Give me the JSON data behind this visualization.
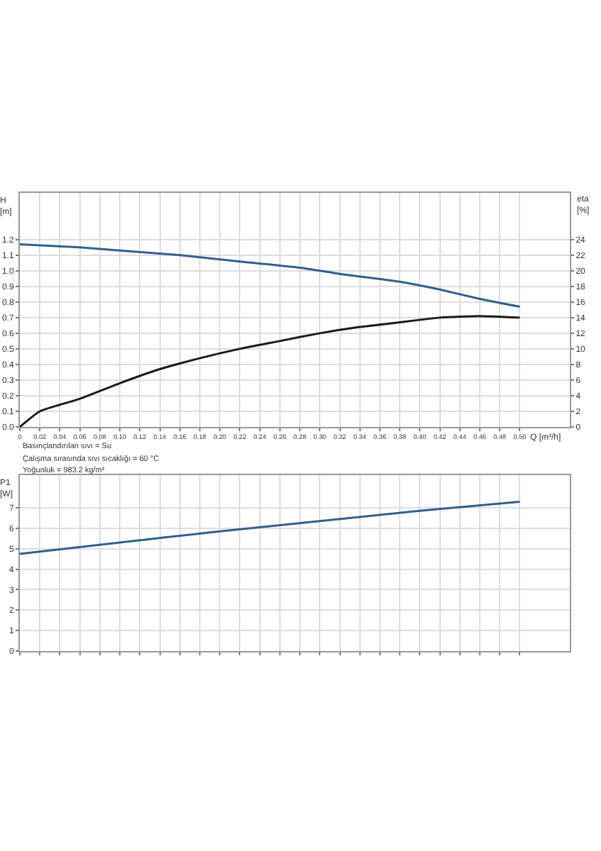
{
  "chart_data": [
    {
      "type": "line",
      "xlabel": "Q [m³/h]",
      "ylabel": "H\n[m]",
      "y2label": "eta\n[%]",
      "xlim": [
        0,
        0.55
      ],
      "ylim": [
        0,
        1.5
      ],
      "y2lim": [
        0,
        30
      ],
      "xticks": [
        0,
        0.02,
        0.04,
        0.06,
        0.08,
        {
          "value": 0.1,
          "label": "0.10"
        },
        0.12,
        0.14,
        0.16,
        0.18,
        {
          "value": 0.2,
          "label": "0.20"
        },
        0.22,
        0.24,
        0.26,
        0.28,
        {
          "value": 0.3,
          "label": "0.30"
        },
        0.32,
        0.34,
        0.36,
        0.38,
        {
          "value": 0.4,
          "label": "0.40"
        },
        0.42,
        0.44,
        0.46,
        0.48,
        {
          "value": 0.5,
          "label": "0.50"
        }
      ],
      "yticks": [
        {
          "value": 0,
          "label": "0.0"
        },
        0.1,
        0.2,
        0.3,
        0.4,
        0.5,
        0.6,
        0.7,
        0.8,
        0.9,
        {
          "value": 1,
          "label": "1.0"
        },
        1.1,
        1.2
      ],
      "y2ticks": [
        0,
        2,
        4,
        6,
        8,
        10,
        12,
        14,
        16,
        18,
        20,
        22,
        24
      ],
      "grid": true,
      "marker": "none",
      "line_style": "solid",
      "series": [
        {
          "color": "#2f6090",
          "x": [
            0,
            0.06,
            0.1,
            0.16,
            0.22,
            0.28,
            0.32,
            0.38,
            0.42,
            0.46,
            0.5
          ],
          "values": [
            1.17,
            1.15,
            1.13,
            1.1,
            1.06,
            1.02,
            0.98,
            0.93,
            0.88,
            0.82,
            0.77
          ]
        },
        {
          "color": "#1a1a1a",
          "axis": "y2",
          "x": [
            0,
            0.02,
            0.06,
            0.1,
            0.14,
            0.18,
            0.22,
            0.26,
            0.3,
            0.34,
            0.38,
            0.42,
            0.46,
            0.5
          ],
          "values": [
            0,
            2,
            3.6,
            5.6,
            7.4,
            8.8,
            10,
            11,
            12,
            12.8,
            13.4,
            14,
            14.2,
            14
          ]
        }
      ],
      "annotations": [
        "Basınçlandırılan sıvı = Su",
        "Çalışma sırasında sıvı sıcaklığı = 60 °C",
        "Yoğunluk = 983.2 kg/m³"
      ]
    },
    {
      "type": "line",
      "ylabel": "P1\n[W]",
      "xlim": [
        0,
        0.55
      ],
      "ylim": [
        0,
        8.6
      ],
      "xticks": [
        0,
        0.02,
        0.04,
        0.06,
        0.08,
        0.1,
        0.12,
        0.14,
        0.16,
        0.18,
        0.2,
        0.22,
        0.24,
        0.26,
        0.28,
        0.3,
        0.32,
        0.34,
        0.36,
        0.38,
        0.4,
        0.42,
        0.44,
        0.46,
        0.48,
        0.5
      ],
      "yticks": [
        0,
        1,
        2,
        3,
        4,
        5,
        6,
        7
      ],
      "tick_labels": "y",
      "grid": true,
      "marker": "none",
      "line_style": "solid",
      "series": [
        {
          "color": "#2f6090",
          "x": [
            0,
            0.1,
            0.2,
            0.3,
            0.4,
            0.5
          ],
          "values": [
            4.75,
            5.3,
            5.85,
            6.35,
            6.85,
            7.3
          ]
        }
      ]
    }
  ]
}
